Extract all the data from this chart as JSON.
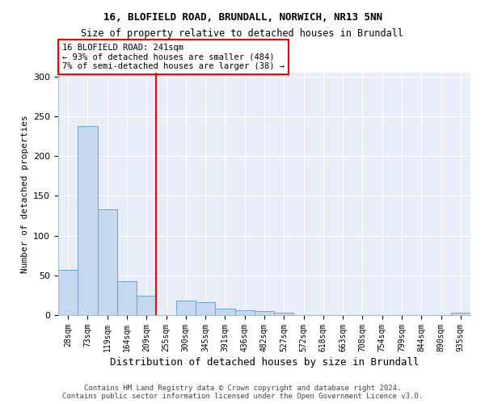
{
  "title1": "16, BLOFIELD ROAD, BRUNDALL, NORWICH, NR13 5NN",
  "title2": "Size of property relative to detached houses in Brundall",
  "xlabel": "Distribution of detached houses by size in Brundall",
  "ylabel": "Number of detached properties",
  "footer": "Contains HM Land Registry data © Crown copyright and database right 2024.\nContains public sector information licensed under the Open Government Licence v3.0.",
  "categories": [
    "28sqm",
    "73sqm",
    "119sqm",
    "164sqm",
    "209sqm",
    "255sqm",
    "300sqm",
    "345sqm",
    "391sqm",
    "436sqm",
    "482sqm",
    "527sqm",
    "572sqm",
    "618sqm",
    "663sqm",
    "708sqm",
    "754sqm",
    "799sqm",
    "844sqm",
    "890sqm",
    "935sqm"
  ],
  "values": [
    57,
    238,
    133,
    43,
    24,
    0,
    18,
    16,
    8,
    6,
    5,
    3,
    0,
    0,
    0,
    0,
    0,
    0,
    0,
    0,
    3
  ],
  "bar_color": "#c5d8ef",
  "bar_edge_color": "#6ba3cd",
  "line_color": "red",
  "property_line_x": 4.5,
  "annotation_text": "16 BLOFIELD ROAD: 241sqm\n← 93% of detached houses are smaller (484)\n7% of semi-detached houses are larger (38) →",
  "ylim": [
    0,
    305
  ],
  "yticks": [
    0,
    50,
    100,
    150,
    200,
    250,
    300
  ],
  "background_color": "#e8eef8"
}
